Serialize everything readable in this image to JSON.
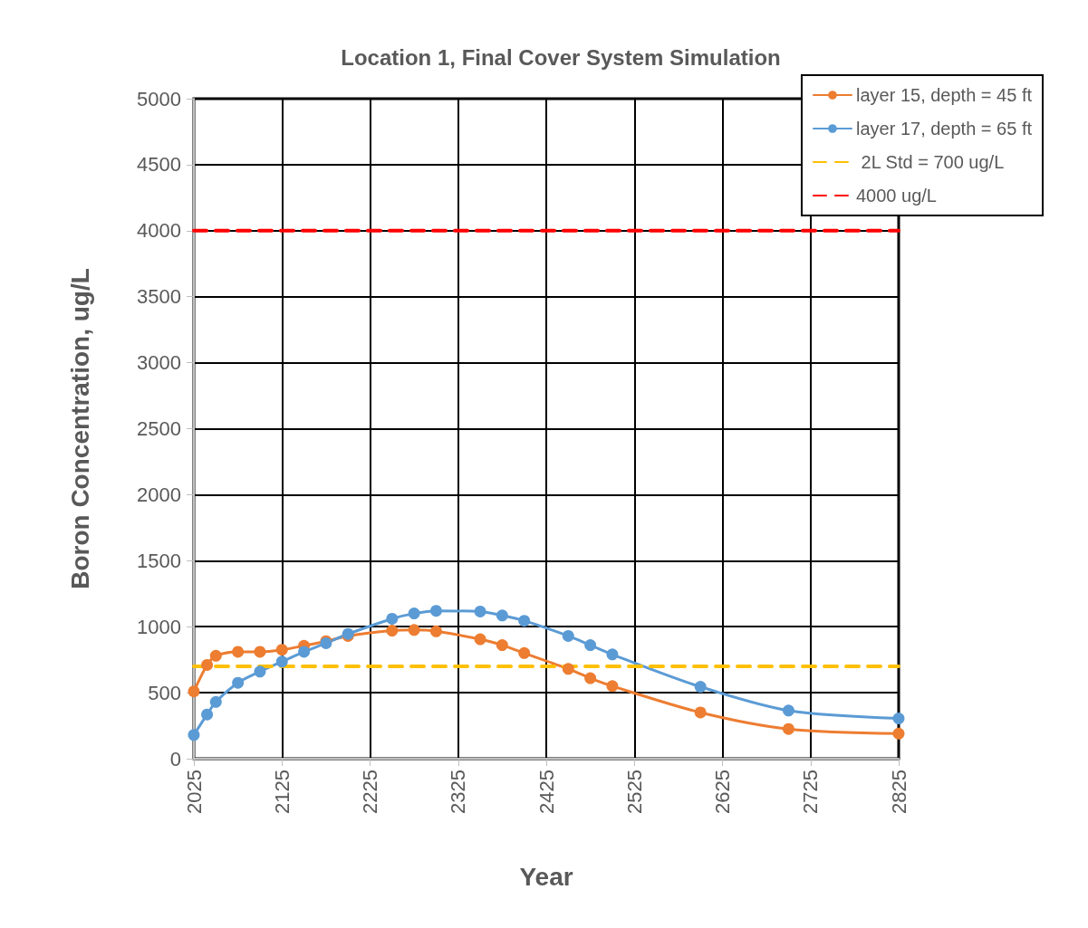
{
  "chart_data": {
    "type": "line",
    "title": "Location 1, Final Cover System Simulation",
    "xlabel": "Year",
    "ylabel": "Boron Concentration, ug/L",
    "xlim": [
      2025,
      2825
    ],
    "xticks": [
      2025,
      2125,
      2225,
      2325,
      2425,
      2525,
      2625,
      2725,
      2825
    ],
    "ylim": [
      0,
      5000
    ],
    "yticks": [
      0,
      500,
      1000,
      1500,
      2000,
      2500,
      3000,
      3500,
      4000,
      4500,
      5000
    ],
    "grid": true,
    "legend": "top right",
    "series": [
      {
        "name": "layer 15, depth = 45 ft",
        "color": "#ed7d31",
        "marker": "circle",
        "line_style": "solid",
        "x": [
          2025,
          2040,
          2050,
          2075,
          2100,
          2125,
          2150,
          2175,
          2200,
          2250,
          2275,
          2300,
          2350,
          2375,
          2400,
          2450,
          2475,
          2500,
          2600,
          2700,
          2825
        ],
        "values": [
          510,
          710,
          780,
          810,
          810,
          825,
          855,
          890,
          930,
          970,
          975,
          965,
          905,
          860,
          800,
          680,
          610,
          550,
          350,
          225,
          190
        ]
      },
      {
        "name": "layer 17, depth = 65 ft",
        "color": "#5b9bd5",
        "marker": "circle",
        "line_style": "solid",
        "x": [
          2025,
          2040,
          2050,
          2075,
          2100,
          2125,
          2150,
          2175,
          2200,
          2250,
          2275,
          2300,
          2350,
          2375,
          2400,
          2450,
          2475,
          2500,
          2600,
          2700,
          2825
        ],
        "values": [
          180,
          335,
          430,
          575,
          660,
          735,
          810,
          875,
          945,
          1060,
          1100,
          1120,
          1115,
          1085,
          1045,
          930,
          860,
          790,
          545,
          365,
          305
        ]
      },
      {
        "name": " 2L Std = 700 ug/L",
        "color": "#ffc000",
        "marker": "none",
        "line_style": "dashed",
        "x": [
          2025,
          2825
        ],
        "values": [
          700,
          700
        ]
      },
      {
        "name": "4000 ug/L",
        "color": "#ff0000",
        "marker": "none",
        "line_style": "dashed",
        "x": [
          2025,
          2825
        ],
        "values": [
          4000,
          4000
        ]
      }
    ]
  }
}
